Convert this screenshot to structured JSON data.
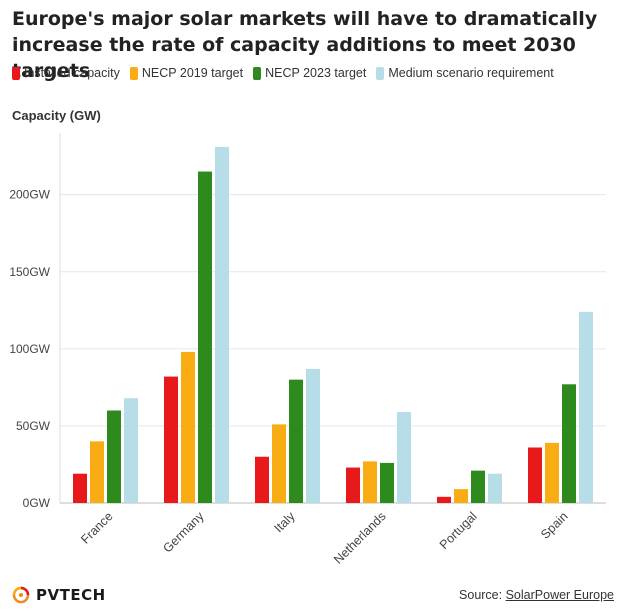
{
  "title": "Europe's major solar markets will have to dramatically increase the rate of capacity additions to meet 2030 targets",
  "footer": {
    "logo_text": "PVTECH",
    "source_prefix": "Source: ",
    "source_link": "SolarPower Europe"
  },
  "chart_data": {
    "type": "bar",
    "ylabel": "Capacity (GW)",
    "categories": [
      "France",
      "Germany",
      "Italy",
      "Netherlands",
      "Portugal",
      "Spain"
    ],
    "series": [
      {
        "name": "Installed capacity",
        "color": "#e8191b",
        "values": [
          19,
          82,
          30,
          23,
          4,
          36
        ]
      },
      {
        "name": "NECP 2019 target",
        "color": "#f9ac14",
        "values": [
          40,
          98,
          51,
          27,
          9,
          39
        ]
      },
      {
        "name": "NECP 2023 target",
        "color": "#2e8a1c",
        "values": [
          60,
          215,
          80,
          26,
          21,
          77
        ]
      },
      {
        "name": "Medium scenario requirement",
        "color": "#b7dde9",
        "values": [
          68,
          231,
          87,
          59,
          19,
          124
        ]
      }
    ],
    "yticks": [
      "0GW",
      "50GW",
      "100GW",
      "150GW",
      "200GW"
    ],
    "ylim": [
      0,
      240
    ],
    "grid": true,
    "legend": "top"
  }
}
